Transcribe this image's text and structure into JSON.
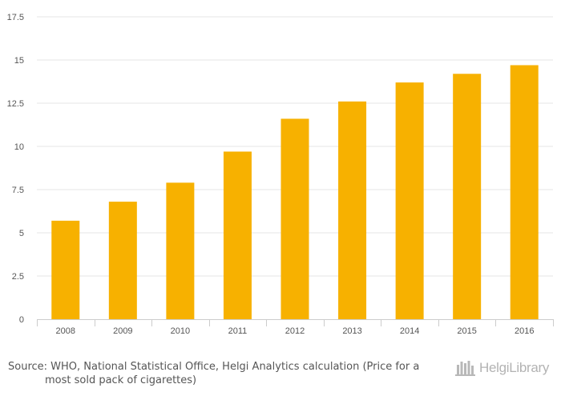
{
  "chart_data": {
    "type": "bar",
    "categories": [
      "2008",
      "2009",
      "2010",
      "2011",
      "2012",
      "2013",
      "2014",
      "2015",
      "2016"
    ],
    "values": [
      5.7,
      6.8,
      7.9,
      9.7,
      11.6,
      12.6,
      13.7,
      14.2,
      14.7
    ],
    "ylim": [
      0,
      17.5
    ],
    "yticks": [
      "0",
      "2.5",
      "5",
      "7.5",
      "10",
      "12.5",
      "15",
      "17.5"
    ],
    "grid": true,
    "bar_color": "#F7B100",
    "grid_color": "#E6E6E6",
    "axis_color": "#CCCCCC",
    "legend": "none"
  },
  "footer": {
    "source_line1": "Source: WHO, National Statistical Office, Helgi Analytics calculation (Price for a",
    "source_line2": "most sold pack of cigarettes)",
    "logo_text": "HelgiLibrary",
    "logo_icon": "helgi-library-building-icon"
  }
}
